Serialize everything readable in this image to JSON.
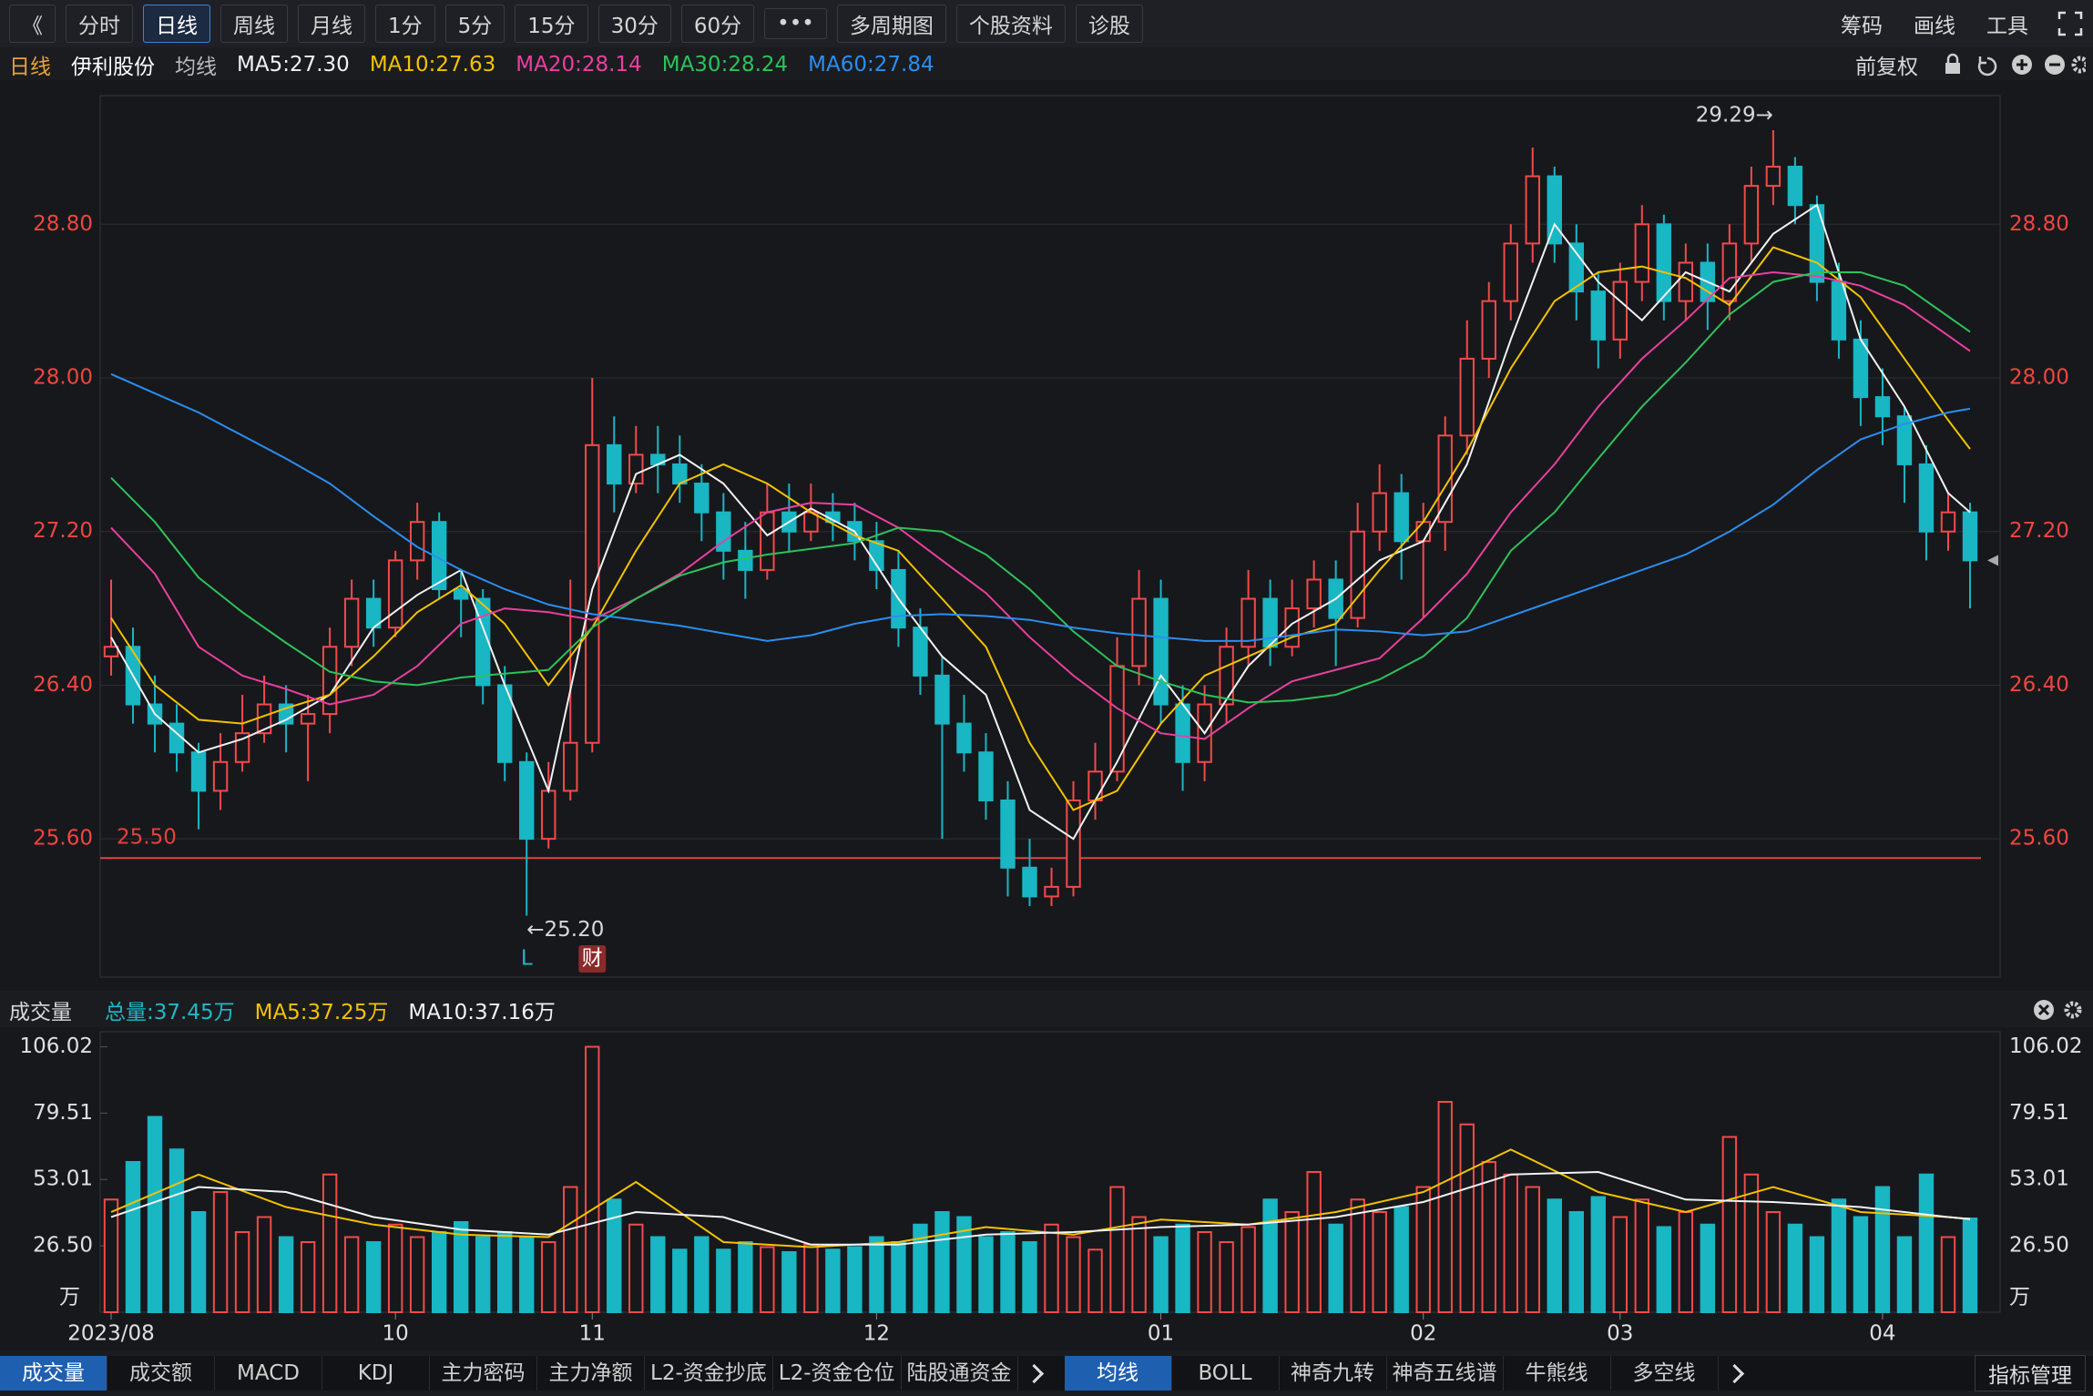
{
  "toolbar": {
    "left": [
      "《",
      "分时",
      "日线",
      "周线",
      "月线",
      "1分",
      "5分",
      "15分",
      "30分",
      "60分",
      "•••",
      "多周期图",
      "个股资料",
      "诊股"
    ],
    "active": 2,
    "right": [
      "筹码",
      "画线",
      "工具"
    ]
  },
  "indicator_tabs": {
    "left": [
      "成交量",
      "成交额",
      "MACD",
      "KDJ",
      "主力密码",
      "主力净额",
      "L2-资金抄底",
      "L2-资金仓位",
      "陆股通资金"
    ],
    "left_active": 0,
    "right": [
      "均线",
      "BOLL",
      "神奇九转",
      "神奇五线谱",
      "牛熊线",
      "多空线"
    ],
    "right_active": 0,
    "manage": "指标管理"
  },
  "chart_data": [
    {
      "type": "candlestick",
      "period": "日线",
      "name": "伊利股份",
      "ma_label": "均线",
      "adjust": "前复权",
      "up_color": "#f24a4a",
      "down_color": "#19b6c4",
      "open": [
        26.55,
        26.6,
        26.3,
        26.2,
        26.05,
        25.85,
        26.0,
        26.15,
        26.3,
        26.2,
        26.25,
        26.6,
        26.85,
        26.7,
        27.05,
        27.25,
        26.9,
        26.85,
        26.4,
        26.0,
        25.6,
        25.85,
        26.1,
        27.65,
        27.45,
        27.6,
        27.55,
        27.45,
        27.3,
        27.1,
        27.0,
        27.3,
        27.2,
        27.3,
        27.25,
        27.15,
        27.0,
        26.7,
        26.45,
        26.2,
        26.05,
        25.8,
        25.45,
        25.3,
        25.35,
        25.8,
        25.95,
        26.5,
        26.85,
        26.3,
        26.0,
        26.3,
        26.6,
        26.85,
        26.6,
        26.8,
        26.95,
        26.75,
        27.2,
        27.4,
        27.15,
        27.25,
        27.7,
        28.1,
        28.4,
        28.7,
        29.05,
        28.7,
        28.45,
        28.2,
        28.5,
        28.8,
        28.4,
        28.6,
        28.4,
        28.7,
        29.0,
        29.1,
        28.9,
        28.5,
        28.2,
        27.9,
        27.8,
        27.55,
        27.2,
        27.3
      ],
      "high": [
        26.95,
        26.7,
        26.45,
        26.3,
        26.1,
        26.15,
        26.35,
        26.45,
        26.4,
        26.35,
        26.7,
        26.95,
        26.95,
        27.1,
        27.35,
        27.3,
        27.0,
        26.9,
        26.5,
        26.05,
        26.0,
        26.95,
        28.0,
        27.8,
        27.75,
        27.75,
        27.7,
        27.55,
        27.4,
        27.25,
        27.45,
        27.45,
        27.45,
        27.4,
        27.35,
        27.25,
        27.1,
        26.8,
        26.55,
        26.35,
        26.15,
        25.9,
        25.6,
        25.45,
        25.9,
        26.1,
        26.65,
        27.0,
        26.95,
        26.4,
        26.4,
        26.7,
        27.0,
        26.95,
        26.95,
        27.05,
        27.05,
        27.35,
        27.55,
        27.5,
        27.35,
        27.8,
        28.3,
        28.5,
        28.8,
        29.2,
        29.1,
        28.8,
        28.55,
        28.6,
        28.9,
        28.85,
        28.7,
        28.7,
        28.8,
        29.1,
        29.29,
        29.15,
        28.95,
        28.6,
        28.3,
        28.05,
        27.85,
        27.65,
        27.4,
        27.35
      ],
      "low": [
        26.45,
        26.2,
        26.05,
        25.95,
        25.65,
        25.75,
        25.95,
        26.1,
        26.05,
        25.9,
        26.15,
        26.5,
        26.6,
        26.65,
        26.95,
        26.85,
        26.65,
        26.3,
        25.9,
        25.2,
        25.55,
        25.8,
        26.05,
        27.3,
        27.4,
        27.4,
        27.35,
        27.15,
        26.95,
        26.85,
        26.95,
        27.1,
        27.15,
        27.15,
        27.05,
        26.9,
        26.6,
        26.35,
        25.6,
        25.95,
        25.7,
        25.3,
        25.25,
        25.25,
        25.3,
        25.7,
        25.9,
        26.4,
        26.2,
        25.85,
        25.9,
        26.2,
        26.5,
        26.5,
        26.55,
        26.7,
        26.5,
        26.7,
        27.1,
        26.95,
        26.75,
        27.1,
        27.6,
        28.0,
        28.3,
        28.6,
        28.6,
        28.3,
        28.05,
        28.1,
        28.4,
        28.3,
        28.3,
        28.25,
        28.3,
        28.6,
        28.9,
        28.8,
        28.4,
        28.1,
        27.75,
        27.65,
        27.35,
        27.05,
        27.1,
        26.8
      ],
      "close": [
        26.6,
        26.3,
        26.2,
        26.05,
        25.85,
        26.0,
        26.15,
        26.3,
        26.2,
        26.25,
        26.6,
        26.85,
        26.7,
        27.05,
        27.25,
        26.9,
        26.85,
        26.4,
        26.0,
        25.6,
        25.85,
        26.1,
        27.65,
        27.45,
        27.6,
        27.55,
        27.45,
        27.3,
        27.1,
        27.0,
        27.3,
        27.2,
        27.3,
        27.25,
        27.15,
        27.0,
        26.7,
        26.45,
        26.2,
        26.05,
        25.8,
        25.45,
        25.3,
        25.35,
        25.8,
        25.95,
        26.5,
        26.85,
        26.3,
        26.0,
        26.3,
        26.6,
        26.85,
        26.6,
        26.8,
        26.95,
        26.75,
        27.2,
        27.4,
        27.15,
        27.25,
        27.7,
        28.1,
        28.4,
        28.7,
        29.05,
        28.7,
        28.45,
        28.2,
        28.5,
        28.8,
        28.4,
        28.6,
        28.4,
        28.7,
        29.0,
        29.1,
        28.9,
        28.5,
        28.2,
        27.9,
        27.8,
        27.55,
        27.2,
        27.3,
        27.05
      ],
      "ma_x": [
        0,
        2,
        4,
        6,
        8,
        10,
        12,
        14,
        16,
        18,
        20,
        22,
        24,
        26,
        28,
        30,
        32,
        34,
        36,
        38,
        40,
        42,
        44,
        46,
        48,
        50,
        52,
        54,
        56,
        58,
        60,
        62,
        64,
        66,
        68,
        70,
        72,
        74,
        76,
        78,
        80,
        82,
        84,
        85
      ],
      "series": [
        {
          "name": "MA5:27.30",
          "color": "#f2f2f2",
          "values": [
            26.65,
            26.25,
            26.05,
            26.12,
            26.22,
            26.35,
            26.7,
            26.87,
            27.0,
            26.4,
            25.85,
            26.9,
            27.5,
            27.6,
            27.45,
            27.18,
            27.32,
            27.2,
            26.85,
            26.55,
            26.35,
            25.75,
            25.6,
            26.0,
            26.45,
            26.15,
            26.5,
            26.72,
            26.85,
            27.05,
            27.15,
            27.55,
            28.2,
            28.8,
            28.5,
            28.3,
            28.55,
            28.45,
            28.75,
            28.9,
            28.2,
            27.85,
            27.4,
            27.3
          ]
        },
        {
          "name": "MA10:27.63",
          "color": "#f2c200",
          "values": [
            26.75,
            26.4,
            26.22,
            26.2,
            26.28,
            26.35,
            26.55,
            26.78,
            26.92,
            26.72,
            26.4,
            26.7,
            27.1,
            27.45,
            27.55,
            27.45,
            27.3,
            27.18,
            27.1,
            26.85,
            26.6,
            26.1,
            25.75,
            25.85,
            26.2,
            26.45,
            26.55,
            26.65,
            26.72,
            27.0,
            27.25,
            27.62,
            28.05,
            28.4,
            28.55,
            28.58,
            28.52,
            28.38,
            28.68,
            28.6,
            28.42,
            28.1,
            27.78,
            27.63
          ]
        },
        {
          "name": "MA20:28.14",
          "color": "#e8409e",
          "values": [
            27.22,
            26.98,
            26.6,
            26.45,
            26.38,
            26.3,
            26.35,
            26.5,
            26.72,
            26.8,
            26.78,
            26.74,
            26.85,
            26.98,
            27.15,
            27.3,
            27.35,
            27.34,
            27.22,
            27.05,
            26.88,
            26.65,
            26.45,
            26.28,
            26.15,
            26.12,
            26.28,
            26.42,
            26.48,
            26.54,
            26.75,
            26.98,
            27.3,
            27.55,
            27.85,
            28.1,
            28.3,
            28.52,
            28.55,
            28.53,
            28.48,
            28.38,
            28.22,
            28.14
          ]
        },
        {
          "name": "MA30:28.24",
          "color": "#2cc25a",
          "values": [
            27.48,
            27.25,
            26.96,
            26.78,
            26.62,
            26.47,
            26.42,
            26.4,
            26.44,
            26.46,
            26.48,
            26.7,
            26.85,
            26.97,
            27.04,
            27.08,
            27.11,
            27.14,
            27.22,
            27.2,
            27.08,
            26.9,
            26.68,
            26.5,
            26.42,
            26.35,
            26.31,
            26.32,
            26.35,
            26.43,
            26.55,
            26.75,
            27.1,
            27.3,
            27.58,
            27.85,
            28.08,
            28.33,
            28.5,
            28.55,
            28.55,
            28.48,
            28.32,
            28.24
          ]
        },
        {
          "name": "MA60:27.84",
          "color": "#2a8ef0",
          "values": [
            28.02,
            27.92,
            27.82,
            27.7,
            27.58,
            27.45,
            27.28,
            27.12,
            27.0,
            26.9,
            26.82,
            26.77,
            26.74,
            26.71,
            26.67,
            26.63,
            26.66,
            26.72,
            26.76,
            26.77,
            26.76,
            26.74,
            26.7,
            26.67,
            26.65,
            26.63,
            26.63,
            26.66,
            26.69,
            26.68,
            26.66,
            26.68,
            26.76,
            26.84,
            26.92,
            27.0,
            27.08,
            27.2,
            27.34,
            27.52,
            27.68,
            27.76,
            27.82,
            27.84
          ]
        }
      ],
      "ylim": [
        24.88,
        29.47
      ],
      "yticks": [
        {
          "value": 25.6,
          "label": "25.60"
        },
        {
          "value": 26.4,
          "label": "26.40"
        },
        {
          "value": 27.2,
          "label": "27.20"
        },
        {
          "value": 28.0,
          "label": "28.00"
        },
        {
          "value": 28.8,
          "label": "28.80"
        }
      ],
      "grid": true,
      "hline": {
        "value": 25.5,
        "label": "25.50",
        "color": "#e8403c"
      },
      "annotations": [
        {
          "text": "29.29→",
          "candle": 76,
          "at": "high"
        },
        {
          "text": "←25.20",
          "candle": 19,
          "at": "low"
        }
      ],
      "markers": [
        {
          "text": "L",
          "candle": 19
        },
        {
          "text": "财",
          "candle": 22
        }
      ]
    },
    {
      "type": "bar",
      "title": "成交量",
      "total_label": "总量:37.45万",
      "unit": "万",
      "values": [
        45,
        60,
        78,
        65,
        40,
        48,
        32,
        38,
        30,
        28,
        55,
        30,
        28,
        35,
        30,
        32,
        36,
        30,
        32,
        30,
        28,
        50,
        106,
        45,
        35,
        30,
        25,
        30,
        25,
        28,
        26,
        24,
        27,
        25,
        26,
        30,
        28,
        35,
        40,
        38,
        30,
        32,
        28,
        35,
        30,
        25,
        50,
        38,
        30,
        35,
        32,
        28,
        34,
        45,
        40,
        56,
        35,
        45,
        40,
        42,
        50,
        84,
        75,
        60,
        55,
        50,
        45,
        40,
        46,
        38,
        45,
        34,
        40,
        35,
        70,
        55,
        40,
        35,
        30,
        45,
        38,
        50,
        30,
        55,
        30,
        37.45
      ],
      "ma_x": [
        0,
        4,
        8,
        12,
        16,
        20,
        24,
        28,
        32,
        36,
        40,
        44,
        48,
        52,
        56,
        60,
        64,
        68,
        72,
        76,
        80,
        84,
        85
      ],
      "series": [
        {
          "name": "MA5:37.25万",
          "color": "#f2c200",
          "values": [
            40,
            55,
            42,
            35,
            31,
            30,
            52,
            28,
            26,
            28,
            34,
            31,
            37,
            35,
            40,
            48,
            65,
            48,
            40,
            50,
            40,
            38,
            37.25
          ]
        },
        {
          "name": "MA10:37.16万",
          "color": "#f2f2f2",
          "values": [
            38,
            50,
            48,
            38,
            33,
            31,
            40,
            38,
            27,
            27,
            31,
            32,
            34,
            35,
            38,
            44,
            55,
            56,
            45,
            44,
            42,
            38,
            37.16
          ]
        }
      ],
      "ylim": [
        0,
        112
      ],
      "yticks": [
        {
          "value": 26.5,
          "label": "26.50"
        },
        53.01,
        79.51,
        106.02
      ],
      "xticks": [
        {
          "value": 0,
          "label": "2023/08"
        },
        {
          "value": 13,
          "label": "10"
        },
        {
          "value": 22,
          "label": "11"
        },
        {
          "value": 35,
          "label": "12"
        },
        {
          "value": 48,
          "label": "01"
        },
        {
          "value": 60,
          "label": "02"
        },
        {
          "value": 69,
          "label": "03"
        },
        {
          "value": 81,
          "label": "04"
        }
      ]
    }
  ]
}
